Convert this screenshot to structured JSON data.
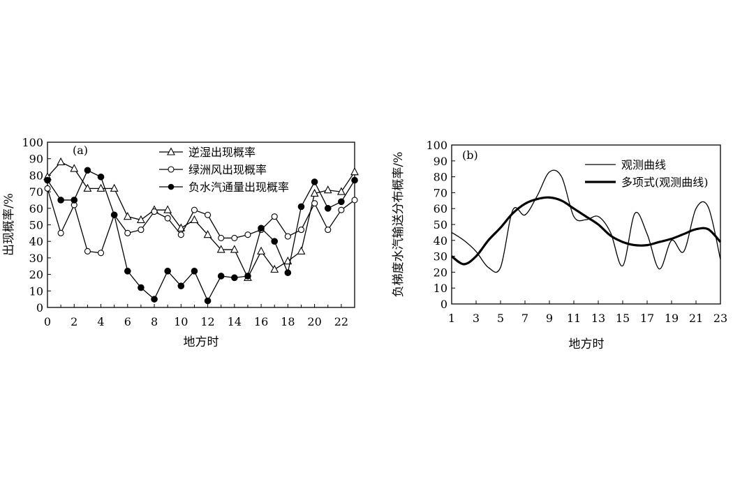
{
  "chart_data": [
    {
      "type": "line",
      "panel_label": "(a)",
      "xlabel": "地方时",
      "ylabel": "出现概率/%",
      "xlim": [
        0,
        23
      ],
      "ylim": [
        0,
        100
      ],
      "xticks": [
        0,
        2,
        4,
        6,
        8,
        10,
        12,
        14,
        16,
        18,
        20,
        22
      ],
      "yticks": [
        0,
        10,
        20,
        30,
        40,
        50,
        60,
        70,
        80,
        90,
        100
      ],
      "grid": false,
      "legend_position": "top",
      "x": [
        0,
        1,
        2,
        3,
        4,
        5,
        6,
        7,
        8,
        9,
        10,
        11,
        12,
        13,
        14,
        15,
        16,
        17,
        18,
        19,
        20,
        21,
        22,
        23
      ],
      "series": [
        {
          "name": "逆湿出现概率",
          "marker": "triangle-open",
          "values": [
            79,
            88,
            84,
            72,
            72,
            72,
            55,
            53,
            59,
            59,
            48,
            53,
            44,
            35,
            35,
            18,
            34,
            23,
            28,
            34,
            69,
            71,
            70,
            82
          ]
        },
        {
          "name": "绿洲风出现概率",
          "marker": "circle-open",
          "values": [
            72,
            45,
            62,
            34,
            33,
            56,
            45,
            47,
            58,
            54,
            44,
            59,
            56,
            42,
            42,
            44,
            47,
            55,
            43,
            47,
            63,
            47,
            59,
            65
          ]
        },
        {
          "name": "负水汽通量出现概率",
          "marker": "circle-filled",
          "values": [
            77,
            65,
            65,
            83,
            79,
            56,
            22,
            12,
            5,
            22,
            13,
            22,
            4,
            19,
            18,
            19,
            48,
            40,
            21,
            61,
            76,
            60,
            64,
            77
          ]
        }
      ]
    },
    {
      "type": "line",
      "panel_label": "(b)",
      "xlabel": "地方时",
      "ylabel": "负梯度水汽输送分布概率/%",
      "xlim": [
        1,
        23
      ],
      "ylim": [
        0,
        100
      ],
      "xticks": [
        1,
        3,
        5,
        7,
        9,
        11,
        13,
        15,
        17,
        19,
        21,
        23
      ],
      "yticks": [
        0,
        10,
        20,
        30,
        40,
        50,
        60,
        70,
        80,
        90,
        100
      ],
      "grid": false,
      "legend_position": "top-right",
      "x": [
        1,
        2,
        3,
        4,
        5,
        6,
        7,
        8,
        9,
        10,
        11,
        12,
        13,
        14,
        15,
        16,
        17,
        18,
        19,
        20,
        21,
        22,
        23
      ],
      "series": [
        {
          "name": "观测曲线",
          "style": "thin",
          "values": [
            45,
            40,
            33,
            23,
            23,
            59,
            56,
            68,
            83,
            80,
            55,
            53,
            55,
            45,
            24,
            57,
            44,
            22,
            40,
            33,
            60,
            61,
            28
          ]
        },
        {
          "name": "多项式(观测曲线)",
          "style": "thick",
          "values": [
            30,
            25,
            30,
            40,
            48,
            57,
            63,
            66,
            67,
            65,
            60,
            55,
            50,
            43,
            39,
            37,
            37,
            39,
            41,
            44,
            47,
            47,
            39
          ]
        }
      ]
    }
  ]
}
